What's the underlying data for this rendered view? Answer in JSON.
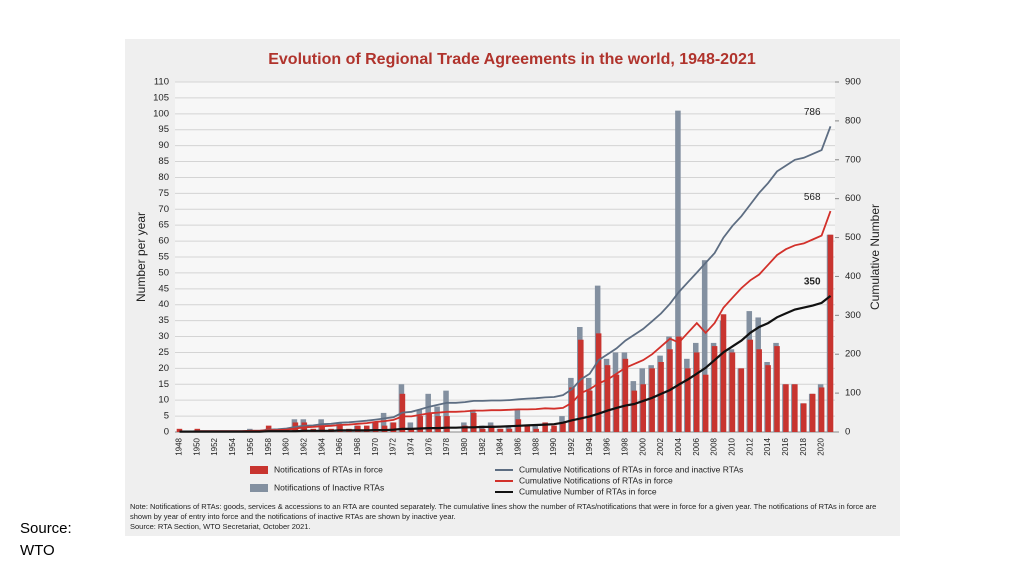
{
  "chart_data": {
    "type": "bar-line",
    "title": "Evolution of Regional Trade Agreements in the world, 1948-2021",
    "y_label": "Number per year",
    "y2_label": "Cumulative Number",
    "categories": [
      "1948",
      null,
      "1950",
      null,
      "1952",
      null,
      "1954",
      null,
      "1956",
      null,
      "1958",
      null,
      "1960",
      null,
      "1962",
      null,
      "1964",
      null,
      "1966",
      null,
      "1968",
      null,
      "1970",
      null,
      "1972",
      null,
      "1974",
      null,
      "1976",
      null,
      "1978",
      null,
      "1980",
      null,
      "1982",
      null,
      "1984",
      null,
      "1986",
      null,
      "1988",
      null,
      "1990",
      null,
      "1992",
      null,
      "1994",
      null,
      "1996",
      null,
      "1998",
      null,
      "2000",
      null,
      "2002",
      null,
      "2004",
      null,
      "2006",
      null,
      "2008",
      null,
      "2010",
      null,
      "2012",
      null,
      "2014",
      null,
      "2016",
      null,
      "2018",
      null,
      "2020",
      null
    ],
    "series": [
      {
        "name": "Notifications of RTAs in force",
        "kind": "bar",
        "color": "#c8342f",
        "values": [
          1,
          0,
          1,
          0,
          0,
          0,
          0,
          0,
          0,
          0,
          2,
          0,
          1,
          3,
          3,
          1,
          2,
          1,
          2,
          1,
          2,
          2,
          3,
          2,
          3,
          12,
          1,
          5,
          6,
          5,
          5,
          0,
          2,
          6,
          1,
          2,
          1,
          1,
          4,
          2,
          1,
          3,
          2,
          3,
          14,
          29,
          13,
          31,
          21,
          18,
          23,
          13,
          15,
          20,
          22,
          26,
          30,
          20,
          25,
          18,
          27,
          37,
          25,
          20,
          29,
          26,
          21,
          27,
          15,
          15,
          9,
          12,
          14,
          62
        ]
      },
      {
        "name": "Notifications of Inactive RTAs",
        "kind": "bar",
        "color": "#8390a0",
        "values": [
          0,
          0,
          0,
          0,
          0,
          0,
          0,
          0,
          1,
          0,
          1,
          1,
          1,
          4,
          4,
          0,
          4,
          0,
          3,
          0,
          2,
          0,
          3,
          6,
          3,
          15,
          3,
          7,
          12,
          8,
          13,
          0,
          3,
          7,
          2,
          3,
          1,
          2,
          7,
          0,
          2,
          0,
          1,
          5,
          17,
          33,
          17,
          46,
          23,
          25,
          25,
          16,
          20,
          21,
          24,
          30,
          101,
          23,
          28,
          54,
          28,
          35,
          26,
          20,
          38,
          36,
          22,
          28,
          15,
          15,
          9,
          12,
          15,
          62
        ]
      },
      {
        "name": "Cumulative Notifications of RTAs in force and inactive RTAs",
        "kind": "line",
        "axis": "y2",
        "color": "#5d6d82",
        "values": [
          1,
          1,
          2,
          2,
          2,
          2,
          2,
          2,
          3,
          3,
          6,
          7,
          9,
          13,
          16,
          17,
          20,
          21,
          24,
          25,
          27,
          29,
          32,
          35,
          38,
          50,
          52,
          58,
          65,
          70,
          75,
          75,
          77,
          80,
          80,
          81,
          81,
          82,
          84,
          86,
          87,
          89,
          90,
          95,
          110,
          135,
          150,
          185,
          200,
          215,
          235,
          250,
          265,
          285,
          305,
          330,
          360,
          385,
          410,
          435,
          460,
          500,
          530,
          555,
          585,
          615,
          640,
          670,
          685,
          700,
          705,
          715,
          725,
          786
        ]
      },
      {
        "name": "Cumulative Notifications of RTAs in force",
        "kind": "line",
        "axis": "y2",
        "color": "#d2302a",
        "values": [
          1,
          1,
          2,
          2,
          2,
          2,
          2,
          2,
          3,
          3,
          5,
          5,
          6,
          9,
          12,
          13,
          15,
          16,
          18,
          19,
          21,
          23,
          26,
          28,
          31,
          40,
          40,
          44,
          48,
          50,
          52,
          52,
          53,
          55,
          55,
          56,
          56,
          57,
          58,
          58,
          59,
          61,
          60,
          62,
          75,
          100,
          110,
          125,
          135,
          150,
          165,
          175,
          185,
          200,
          220,
          240,
          230,
          255,
          280,
          255,
          280,
          320,
          345,
          370,
          390,
          405,
          430,
          455,
          470,
          480,
          485,
          495,
          505,
          568
        ]
      },
      {
        "name": "Cumulative Number of RTAs in force",
        "kind": "line",
        "axis": "y2",
        "color": "#111111",
        "values": [
          1,
          1,
          1,
          1,
          1,
          1,
          1,
          1,
          1,
          1,
          2,
          2,
          2,
          2,
          3,
          3,
          3,
          3,
          4,
          4,
          4,
          4,
          5,
          5,
          6,
          8,
          8,
          9,
          10,
          10,
          11,
          11,
          12,
          12,
          13,
          13,
          14,
          15,
          16,
          17,
          18,
          19,
          20,
          24,
          30,
          35,
          40,
          47,
          55,
          62,
          68,
          72,
          80,
          88,
          98,
          108,
          122,
          135,
          150,
          165,
          185,
          205,
          220,
          235,
          255,
          270,
          280,
          295,
          305,
          315,
          320,
          325,
          332,
          350
        ]
      }
    ],
    "ylim": [
      0,
      110
    ],
    "yticks": [
      0,
      5,
      10,
      15,
      20,
      25,
      30,
      35,
      40,
      45,
      50,
      55,
      60,
      65,
      70,
      75,
      80,
      85,
      90,
      95,
      100,
      105,
      110
    ],
    "y2lim": [
      0,
      900
    ],
    "y2ticks": [
      0,
      100,
      200,
      300,
      400,
      500,
      600,
      700,
      800,
      900
    ],
    "grid": true,
    "note": "Note: Notifications of RTAs: goods, services & accessions to an RTA are counted separately. The cumulative lines show the number of RTAs/notifications that were in force for a given year. The notifications of RTAs in force are shown by year of entry into force and the notifications of inactive RTAs are shown by inactive year.",
    "source": "Source: RTA Section, WTO Secretariat, October 2021."
  },
  "slide_source": [
    "Source:",
    "WTO"
  ]
}
